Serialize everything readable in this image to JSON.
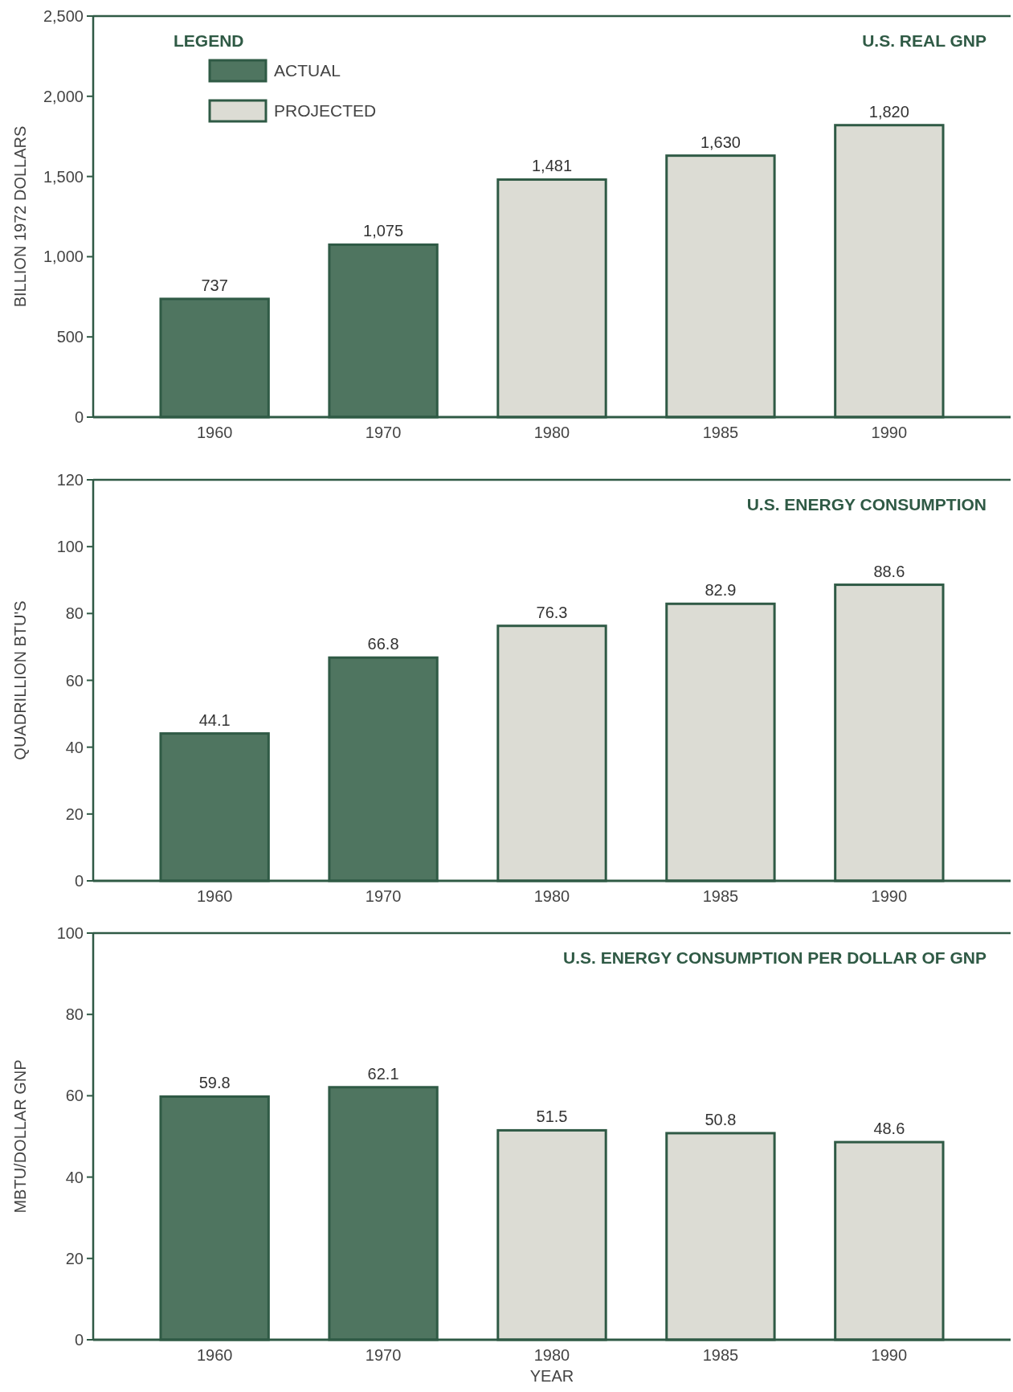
{
  "chart_data": [
    {
      "type": "bar",
      "title": "U.S. REAL GNP",
      "ylabel": "BILLION 1972 DOLLARS",
      "categories": [
        "1960",
        "1970",
        "1980",
        "1985",
        "1990"
      ],
      "series": [
        {
          "name": "ACTUAL",
          "color": "#4f7560",
          "values": [
            737,
            1075,
            null,
            null,
            null
          ],
          "value_labels": [
            "737",
            "1,075",
            null,
            null,
            null
          ]
        },
        {
          "name": "PROJECTED",
          "color": "#dcdcd4",
          "values": [
            null,
            null,
            1481,
            1630,
            1820
          ],
          "value_labels": [
            null,
            null,
            "1,481",
            "1,630",
            "1,820"
          ]
        }
      ],
      "ylim": [
        0,
        2500
      ],
      "yticks": [
        0,
        500,
        {
          "value": 1000,
          "label": "1,000"
        },
        {
          "value": 1500,
          "label": "1,500"
        },
        {
          "value": 2000,
          "label": "2,000"
        },
        {
          "value": 2500,
          "label": "2,500"
        }
      ],
      "legend": "top left",
      "legend_title": "LEGEND"
    },
    {
      "type": "bar",
      "title": "U.S. ENERGY CONSUMPTION",
      "ylabel": "QUADRILLION BTU'S",
      "categories": [
        "1960",
        "1970",
        "1980",
        "1985",
        "1990"
      ],
      "series": [
        {
          "color": "#4f7560",
          "values": [
            44.1,
            66.8,
            null,
            null,
            null
          ]
        },
        {
          "color": "#dcdcd4",
          "values": [
            null,
            null,
            76.3,
            82.9,
            88.6
          ]
        }
      ],
      "ylim": [
        0,
        120
      ],
      "yticks": [
        0,
        20,
        40,
        60,
        80,
        100,
        120
      ],
      "data_labels": true
    },
    {
      "type": "bar",
      "title": "U.S. ENERGY CONSUMPTION PER DOLLAR OF GNP",
      "ylabel": "MBTU/DOLLAR GNP",
      "xlabel": "YEAR",
      "categories": [
        "1960",
        "1970",
        "1980",
        "1985",
        "1990"
      ],
      "series": [
        {
          "color": "#4f7560",
          "values": [
            59.8,
            62.1,
            null,
            null,
            null
          ]
        },
        {
          "color": "#dcdcd4",
          "values": [
            null,
            null,
            51.5,
            50.8,
            48.6
          ]
        }
      ],
      "ylim": [
        0,
        100
      ],
      "yticks": [
        0,
        20,
        40,
        60,
        80,
        100
      ],
      "data_labels": true
    }
  ]
}
